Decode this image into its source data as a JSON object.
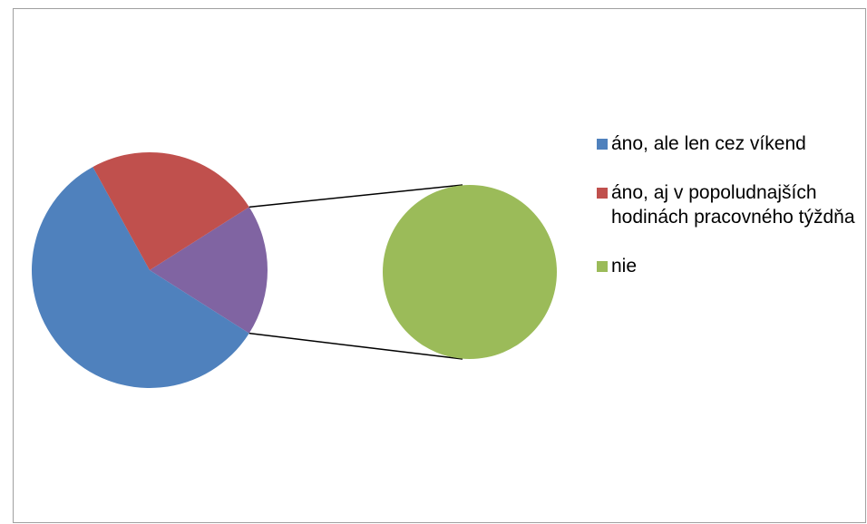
{
  "chart_data": {
    "type": "pie",
    "subtype": "pie-of-pie",
    "title": "",
    "slices": [
      {
        "label": "áno, ale len cez víkend",
        "value": 58,
        "color": "#4F81BD"
      },
      {
        "label": "áno, aj v popoludnajších hodinách pracovného týždňa",
        "value": 24,
        "color": "#C0504D"
      },
      {
        "label": "nie",
        "value": 18,
        "color": "#9BBB59"
      }
    ],
    "secondary": {
      "label": "nie",
      "color": "#9BBB59",
      "connector_color": "#8064A2"
    },
    "legend_position": "right",
    "connector_line_color": "#000000"
  }
}
